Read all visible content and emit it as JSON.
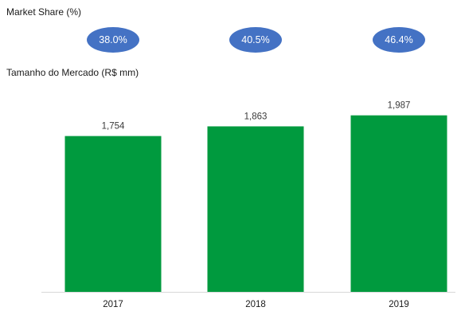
{
  "headings": {
    "market_share": "Market Share (%)",
    "market_size": "Tamanho do Mercado (R$ mm)"
  },
  "market_share_badges": [
    "38.0%",
    "40.5%",
    "46.4%"
  ],
  "chart_data": {
    "type": "bar",
    "categories": [
      "2017",
      "2018",
      "2019"
    ],
    "values": [
      1754,
      1863,
      1987
    ],
    "value_labels": [
      "1,754",
      "1,863",
      "1,987"
    ],
    "title": "Tamanho do Mercado (R$ mm)",
    "xlabel": "",
    "ylabel": "",
    "ylim": [
      0,
      2200
    ],
    "grid": false,
    "legend": "none",
    "bar_color": "#009A3E",
    "annotations": {
      "label": "Market Share (%)",
      "values": [
        "38.0%",
        "40.5%",
        "46.4%"
      ],
      "badge_color": "#4472C4"
    }
  }
}
